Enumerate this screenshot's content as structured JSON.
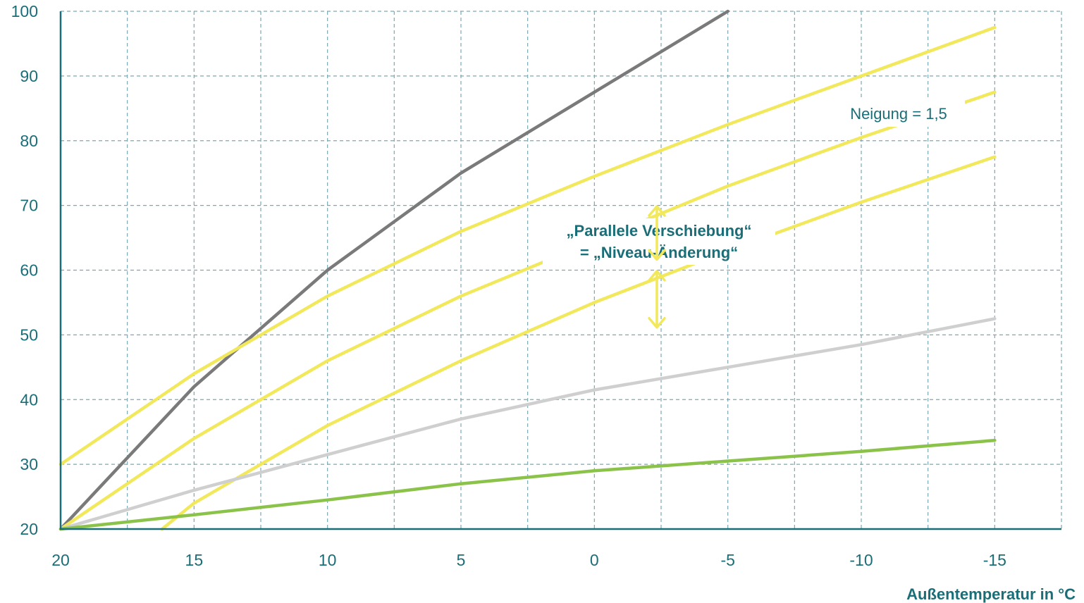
{
  "chart_data": {
    "type": "line",
    "title": "",
    "xlabel": "Außentemperatur in °C",
    "ylabel": "",
    "xlim": [
      20,
      -17.5
    ],
    "ylim": [
      20,
      100
    ],
    "x_reversed": true,
    "grid": true,
    "x_ticks": [
      "20",
      "15",
      "10",
      "5",
      "0",
      "-5",
      "-10",
      "-15"
    ],
    "x_tick_values": [
      20,
      15,
      10,
      5,
      0,
      -5,
      -10,
      -15
    ],
    "y_ticks": [
      "20",
      "30",
      "40",
      "50",
      "60",
      "70",
      "80",
      "90",
      "100"
    ],
    "y_tick_values": [
      20,
      30,
      40,
      50,
      60,
      70,
      80,
      90,
      100
    ],
    "series": [
      {
        "color": "#7a7a7a",
        "points": [
          [
            20,
            20
          ],
          [
            15,
            42
          ],
          [
            10,
            60
          ],
          [
            5,
            75
          ],
          [
            0,
            87.5
          ],
          [
            -5,
            100
          ]
        ]
      },
      {
        "color": "#f2e85c",
        "points": [
          [
            20,
            30
          ],
          [
            15,
            44
          ],
          [
            10,
            56
          ],
          [
            5,
            66
          ],
          [
            0,
            74.5
          ],
          [
            -5,
            82.5
          ],
          [
            -10,
            90
          ],
          [
            -15,
            97.5
          ]
        ]
      },
      {
        "color": "#f2e85c",
        "points": [
          [
            20,
            20
          ],
          [
            15,
            34
          ],
          [
            10,
            46
          ],
          [
            5,
            56
          ],
          [
            0,
            64.5
          ],
          [
            -5,
            73
          ],
          [
            -10,
            80.5
          ],
          [
            -15,
            87.5
          ]
        ]
      },
      {
        "color": "#f2e85c",
        "points": [
          [
            16.2,
            20
          ],
          [
            15,
            24
          ],
          [
            10,
            36
          ],
          [
            5,
            46
          ],
          [
            0,
            55
          ],
          [
            -5,
            63
          ],
          [
            -10,
            70.5
          ],
          [
            -15,
            77.5
          ]
        ]
      },
      {
        "color": "#cfcfcf",
        "points": [
          [
            20,
            20
          ],
          [
            15,
            26
          ],
          [
            10,
            31.5
          ],
          [
            5,
            37
          ],
          [
            0,
            41.5
          ],
          [
            -5,
            45
          ],
          [
            -10,
            48.5
          ],
          [
            -15,
            52.5
          ]
        ]
      },
      {
        "color": "#8bc34a",
        "points": [
          [
            20,
            20
          ],
          [
            15,
            22.2
          ],
          [
            10,
            24.5
          ],
          [
            5,
            27
          ],
          [
            0,
            29
          ],
          [
            -5,
            30.5
          ],
          [
            -10,
            32
          ],
          [
            -15,
            33.7
          ]
        ]
      }
    ],
    "annotations": {
      "shift_line1": "„Parallele Verschiebung“",
      "shift_line2": "= „Niveau-Änderung“",
      "slope": "Neigung = 1,5"
    },
    "arrows_x": -2.5,
    "arrow_segments": [
      [
        61,
        70.5
      ],
      [
        50.5,
        60.5
      ]
    ]
  },
  "colors": {
    "axis": "#1a6e77",
    "grid": "#7aa9b3",
    "arrow": "#f2e85c"
  }
}
